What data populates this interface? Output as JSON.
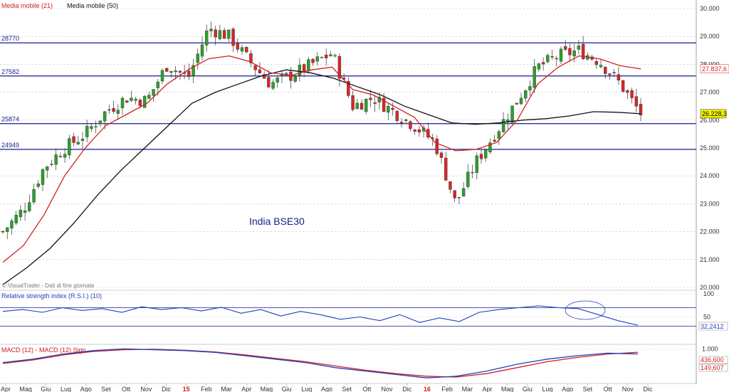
{
  "chart_data": {
    "type": "candlestick",
    "title": "India BSE30",
    "watermark": "© VisualTrader - Dati di fine giornata",
    "legend": [
      {
        "name": "Media mobile (21)",
        "color": "#d02020"
      },
      {
        "name": "Media mobile (50)",
        "color": "#000000"
      }
    ],
    "colors": {
      "up": "#2ca02c",
      "down": "#d62728",
      "ma21": "#d02020",
      "ma50": "#111111",
      "levels": "#1a1a8c",
      "rsi": "#1f3fbf",
      "macd": "#1f3fbf",
      "signal": "#d02020"
    },
    "price_axis": {
      "ylim": [
        20000,
        30000
      ],
      "ticks": [
        "20.000",
        "21.000",
        "22.000",
        "23.000",
        "24.000",
        "25.000",
        "26.000",
        "27.000",
        "28.000",
        "29.000",
        "30.000"
      ]
    },
    "levels": [
      {
        "label": "28770",
        "value": 28770
      },
      {
        "label": "27582",
        "value": 27582
      },
      {
        "label": "25874",
        "value": 25874
      },
      {
        "label": "24949",
        "value": 24949
      }
    ],
    "current_price": {
      "value": 26228,
      "label": "26.228,3"
    },
    "ma21_last_label": "27.837,6",
    "months": [
      "Apr",
      "Mag",
      "Giu",
      "Lug",
      "Ago",
      "Set",
      "Ott",
      "Nov",
      "Dic",
      "15",
      "Feb",
      "Mar",
      "Apr",
      "Mag",
      "Giu",
      "Lug",
      "Ago",
      "Set",
      "Ott",
      "Nov",
      "Dic",
      "16",
      "Feb",
      "Mar",
      "Apr",
      "Mag",
      "Giu",
      "Lug",
      "Ago",
      "Set",
      "Ott",
      "Nov",
      "Dic"
    ],
    "month_highlight": [
      "15",
      "16"
    ],
    "close_path": [
      [
        0,
        22000
      ],
      [
        1,
        22800
      ],
      [
        2,
        24300
      ],
      [
        3,
        25000
      ],
      [
        4,
        25500
      ],
      [
        5,
        26300
      ],
      [
        6,
        26800
      ],
      [
        7,
        26700
      ],
      [
        8,
        28000
      ],
      [
        9,
        27500
      ],
      [
        10,
        29300
      ],
      [
        11,
        29000
      ],
      [
        12,
        28100
      ],
      [
        13,
        27300
      ],
      [
        14,
        27600
      ],
      [
        15,
        28000
      ],
      [
        16,
        28400
      ],
      [
        17,
        26500
      ],
      [
        18,
        26800
      ],
      [
        19,
        26300
      ],
      [
        20,
        25800
      ],
      [
        21,
        25200
      ],
      [
        22,
        23000
      ],
      [
        23,
        24500
      ],
      [
        24,
        25600
      ],
      [
        25,
        26700
      ],
      [
        26,
        27900
      ],
      [
        27,
        28300
      ],
      [
        28,
        28500
      ],
      [
        29,
        28100
      ],
      [
        30,
        27300
      ],
      [
        31,
        26228
      ]
    ],
    "ma21_path": [
      [
        0,
        20900
      ],
      [
        1,
        21500
      ],
      [
        2,
        22600
      ],
      [
        3,
        24000
      ],
      [
        4,
        25000
      ],
      [
        5,
        25800
      ],
      [
        6,
        26200
      ],
      [
        7,
        26600
      ],
      [
        8,
        27300
      ],
      [
        9,
        27800
      ],
      [
        10,
        28200
      ],
      [
        11,
        28300
      ],
      [
        12,
        28100
      ],
      [
        13,
        27700
      ],
      [
        14,
        27600
      ],
      [
        15,
        27800
      ],
      [
        16,
        27900
      ],
      [
        17,
        27100
      ],
      [
        18,
        26900
      ],
      [
        19,
        26500
      ],
      [
        20,
        26100
      ],
      [
        21,
        25200
      ],
      [
        22,
        24900
      ],
      [
        23,
        24950
      ],
      [
        24,
        25200
      ],
      [
        25,
        26000
      ],
      [
        26,
        27300
      ],
      [
        27,
        27900
      ],
      [
        28,
        28300
      ],
      [
        29,
        28200
      ],
      [
        30,
        27950
      ],
      [
        31,
        27837
      ]
    ],
    "ma50_path": [
      [
        0,
        20100
      ],
      [
        1,
        20700
      ],
      [
        2,
        21400
      ],
      [
        3,
        22300
      ],
      [
        4,
        23300
      ],
      [
        5,
        24200
      ],
      [
        6,
        25000
      ],
      [
        7,
        25800
      ],
      [
        8,
        26600
      ],
      [
        9,
        27000
      ],
      [
        10,
        27300
      ],
      [
        11,
        27600
      ],
      [
        12,
        27800
      ],
      [
        13,
        27700
      ],
      [
        14,
        27500
      ],
      [
        15,
        27200
      ],
      [
        16,
        26900
      ],
      [
        17,
        26500
      ],
      [
        18,
        26200
      ],
      [
        19,
        25900
      ],
      [
        20,
        25850
      ],
      [
        21,
        25900
      ],
      [
        22,
        26000
      ],
      [
        23,
        26050
      ],
      [
        24,
        26150
      ],
      [
        25,
        26300
      ],
      [
        26,
        26280
      ],
      [
        27,
        26228
      ]
    ],
    "rsi": {
      "title": "Relative strength index (R.S.I.) (10)",
      "ylim": [
        0,
        100
      ],
      "ticks": [
        "50",
        "100"
      ],
      "bands": [
        30,
        70
      ],
      "last_label": "32,2412",
      "values": [
        62,
        66,
        60,
        70,
        64,
        68,
        60,
        72,
        66,
        70,
        63,
        71,
        58,
        66,
        52,
        62,
        55,
        45,
        50,
        42,
        55,
        38,
        48,
        40,
        60,
        66,
        70,
        74,
        70,
        68,
        55,
        42,
        32
      ]
    },
    "macd": {
      "title": "MACD (12) - MACD (12) Sign",
      "ticks": [
        "1.000"
      ],
      "last_labels": [
        "436,600",
        "149,607"
      ],
      "macd_values": [
        200,
        400,
        700,
        900,
        1000,
        950,
        900,
        800,
        600,
        400,
        200,
        -100,
        -300,
        -500,
        -700,
        -600,
        -300,
        100,
        400,
        600,
        750,
        700
      ],
      "signal_values": [
        150,
        350,
        650,
        850,
        950,
        980,
        920,
        820,
        650,
        450,
        250,
        0,
        -250,
        -450,
        -600,
        -650,
        -450,
        -100,
        250,
        500,
        700,
        800
      ]
    }
  }
}
